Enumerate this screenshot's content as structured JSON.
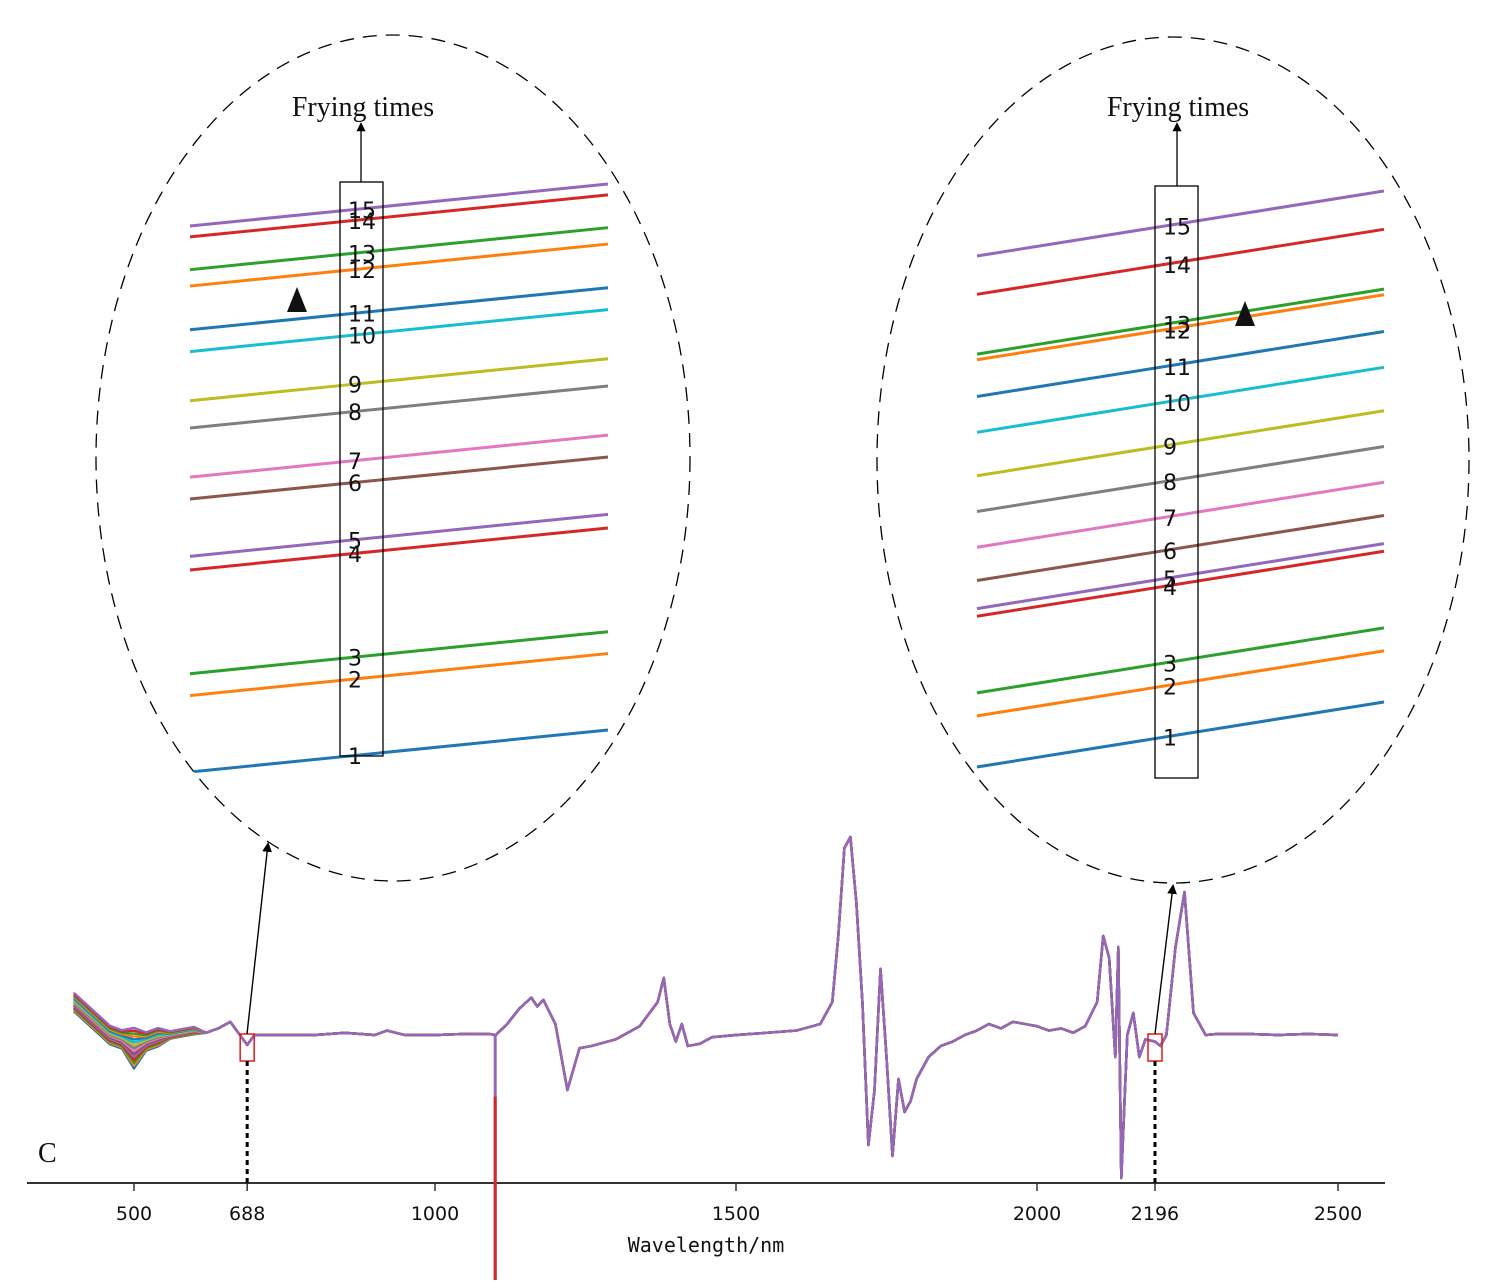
{
  "chart_data": {
    "type": "line",
    "panel_label": "C",
    "xlabel": "Wavelength/nm",
    "x_ticks": [
      500,
      688,
      1000,
      1500,
      2000,
      2196,
      2500
    ],
    "xlim": [
      400,
      2500
    ],
    "series_count": 15,
    "series_colors": [
      "#1f77b4",
      "#ff7f0e",
      "#2ca02c",
      "#d62728",
      "#9467bd",
      "#8c564b",
      "#e377c2",
      "#7f7f7f",
      "#bcbd22",
      "#17becf",
      "#1f77b4",
      "#ff7f0e",
      "#2ca02c",
      "#d62728",
      "#9467bd"
    ],
    "highlighted_wavelengths": [
      688,
      2196
    ],
    "spectrum": {
      "x": [
        400,
        420,
        440,
        460,
        480,
        500,
        520,
        540,
        560,
        580,
        600,
        620,
        640,
        660,
        688,
        700,
        750,
        800,
        850,
        900,
        920,
        950,
        1000,
        1050,
        1090,
        1100,
        1101,
        1120,
        1140,
        1160,
        1170,
        1180,
        1200,
        1220,
        1240,
        1260,
        1300,
        1340,
        1370,
        1380,
        1390,
        1400,
        1410,
        1420,
        1440,
        1460,
        1500,
        1550,
        1600,
        1640,
        1660,
        1670,
        1680,
        1690,
        1700,
        1710,
        1720,
        1730,
        1740,
        1750,
        1760,
        1770,
        1780,
        1790,
        1800,
        1820,
        1840,
        1860,
        1880,
        1900,
        1920,
        1940,
        1960,
        1980,
        2000,
        2020,
        2040,
        2060,
        2080,
        2100,
        2110,
        2120,
        2130,
        2135,
        2140,
        2150,
        2160,
        2165,
        2170,
        2180,
        2196,
        2205,
        2215,
        2230,
        2245,
        2260,
        2280,
        2300,
        2350,
        2400,
        2450,
        2500
      ],
      "y": [
        1.5,
        1.0,
        0.5,
        0.0,
        -0.2,
        -0.6,
        -0.3,
        -0.1,
        0.0,
        0.1,
        0.2,
        0.1,
        0.3,
        0.6,
        -0.45,
        0.0,
        0.0,
        0.0,
        0.1,
        0.0,
        0.2,
        0.0,
        0.0,
        0.05,
        0.05,
        0.0,
        0.0,
        0.5,
        1.2,
        1.7,
        1.3,
        1.6,
        0.5,
        -2.5,
        -0.6,
        -0.5,
        -0.2,
        0.4,
        1.5,
        2.6,
        0.5,
        -0.3,
        0.5,
        -0.5,
        -0.4,
        -0.1,
        0.0,
        0.1,
        0.2,
        0.5,
        1.5,
        4.5,
        8.5,
        9.0,
        6.0,
        1.5,
        -5.0,
        -2.5,
        3.0,
        -1.0,
        -5.5,
        -2.0,
        -3.5,
        -3.0,
        -2.0,
        -1.0,
        -0.5,
        -0.3,
        0.0,
        0.2,
        0.5,
        0.3,
        0.6,
        0.5,
        0.4,
        0.2,
        0.3,
        0.1,
        0.4,
        1.5,
        4.5,
        3.5,
        -1.0,
        4.0,
        -6.5,
        0.0,
        1.0,
        0.0,
        -1.0,
        -0.2,
        -0.3,
        -0.5,
        0.0,
        4.0,
        6.5,
        1.0,
        0.0,
        0.05,
        0.05,
        0.0,
        0.05,
        0.0
      ]
    },
    "outlier_spike": {
      "x": 1100,
      "y_min": -12,
      "y_max": 0
    },
    "insets": [
      {
        "title": "Frying times",
        "wavelength": 688,
        "series_labels": [
          "1",
          "2",
          "3",
          "4",
          "5",
          "6",
          "7",
          "8",
          "9",
          "10",
          "11",
          "12",
          "13",
          "14",
          "15"
        ],
        "relative_levels": [
          0.0,
          0.14,
          0.18,
          0.37,
          0.395,
          0.5,
          0.54,
          0.63,
          0.68,
          0.77,
          0.81,
          0.89,
          0.92,
          0.98,
          1.0
        ],
        "arrow_direction": "up"
      },
      {
        "title": "Frying times",
        "wavelength": 2196,
        "series_labels": [
          "1",
          "2",
          "3",
          "4",
          "5",
          "6",
          "7",
          "8",
          "9",
          "10",
          "11",
          "12",
          "13",
          "14",
          "15"
        ],
        "relative_levels": [
          0.0,
          0.1,
          0.145,
          0.295,
          0.31,
          0.365,
          0.43,
          0.5,
          0.57,
          0.655,
          0.725,
          0.797,
          0.808,
          0.925,
          1.0
        ],
        "arrow_direction": "up"
      }
    ]
  }
}
